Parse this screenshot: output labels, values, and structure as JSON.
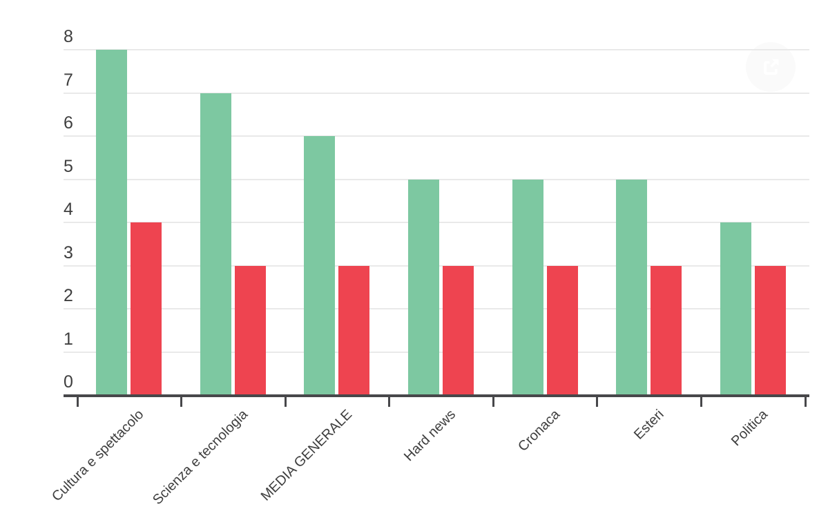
{
  "page": {
    "background": "#ffffff"
  },
  "share_button": {
    "icon_name": "share-icon",
    "icon_color": "#ffffff",
    "circle_color": "#fafafa"
  },
  "chart_data": {
    "type": "bar",
    "title": "",
    "xlabel": "",
    "ylabel": "",
    "categories": [
      "Cultura e spettacolo",
      "Scienza e tecnologia",
      "MEDIA GENERALE",
      "Hard news",
      "Cronaca",
      "Esteri",
      "Politica"
    ],
    "series": [
      {
        "name": "green-series",
        "color": "#7dc8a1",
        "values": [
          8,
          7,
          6,
          5,
          5,
          5,
          4
        ]
      },
      {
        "name": "red-series",
        "color": "#ee4450",
        "values": [
          4,
          3,
          3,
          3,
          3,
          3,
          3
        ]
      }
    ],
    "ylim": [
      0,
      8
    ],
    "yticks": [
      "0",
      "1",
      "2",
      "3",
      "4",
      "5",
      "6",
      "7",
      "8"
    ],
    "grid": true,
    "legend_position": "none",
    "styles": {
      "grid_color": "#e9e9e9",
      "axis_color": "#47474a",
      "label_color": "#3e3e3e"
    }
  }
}
